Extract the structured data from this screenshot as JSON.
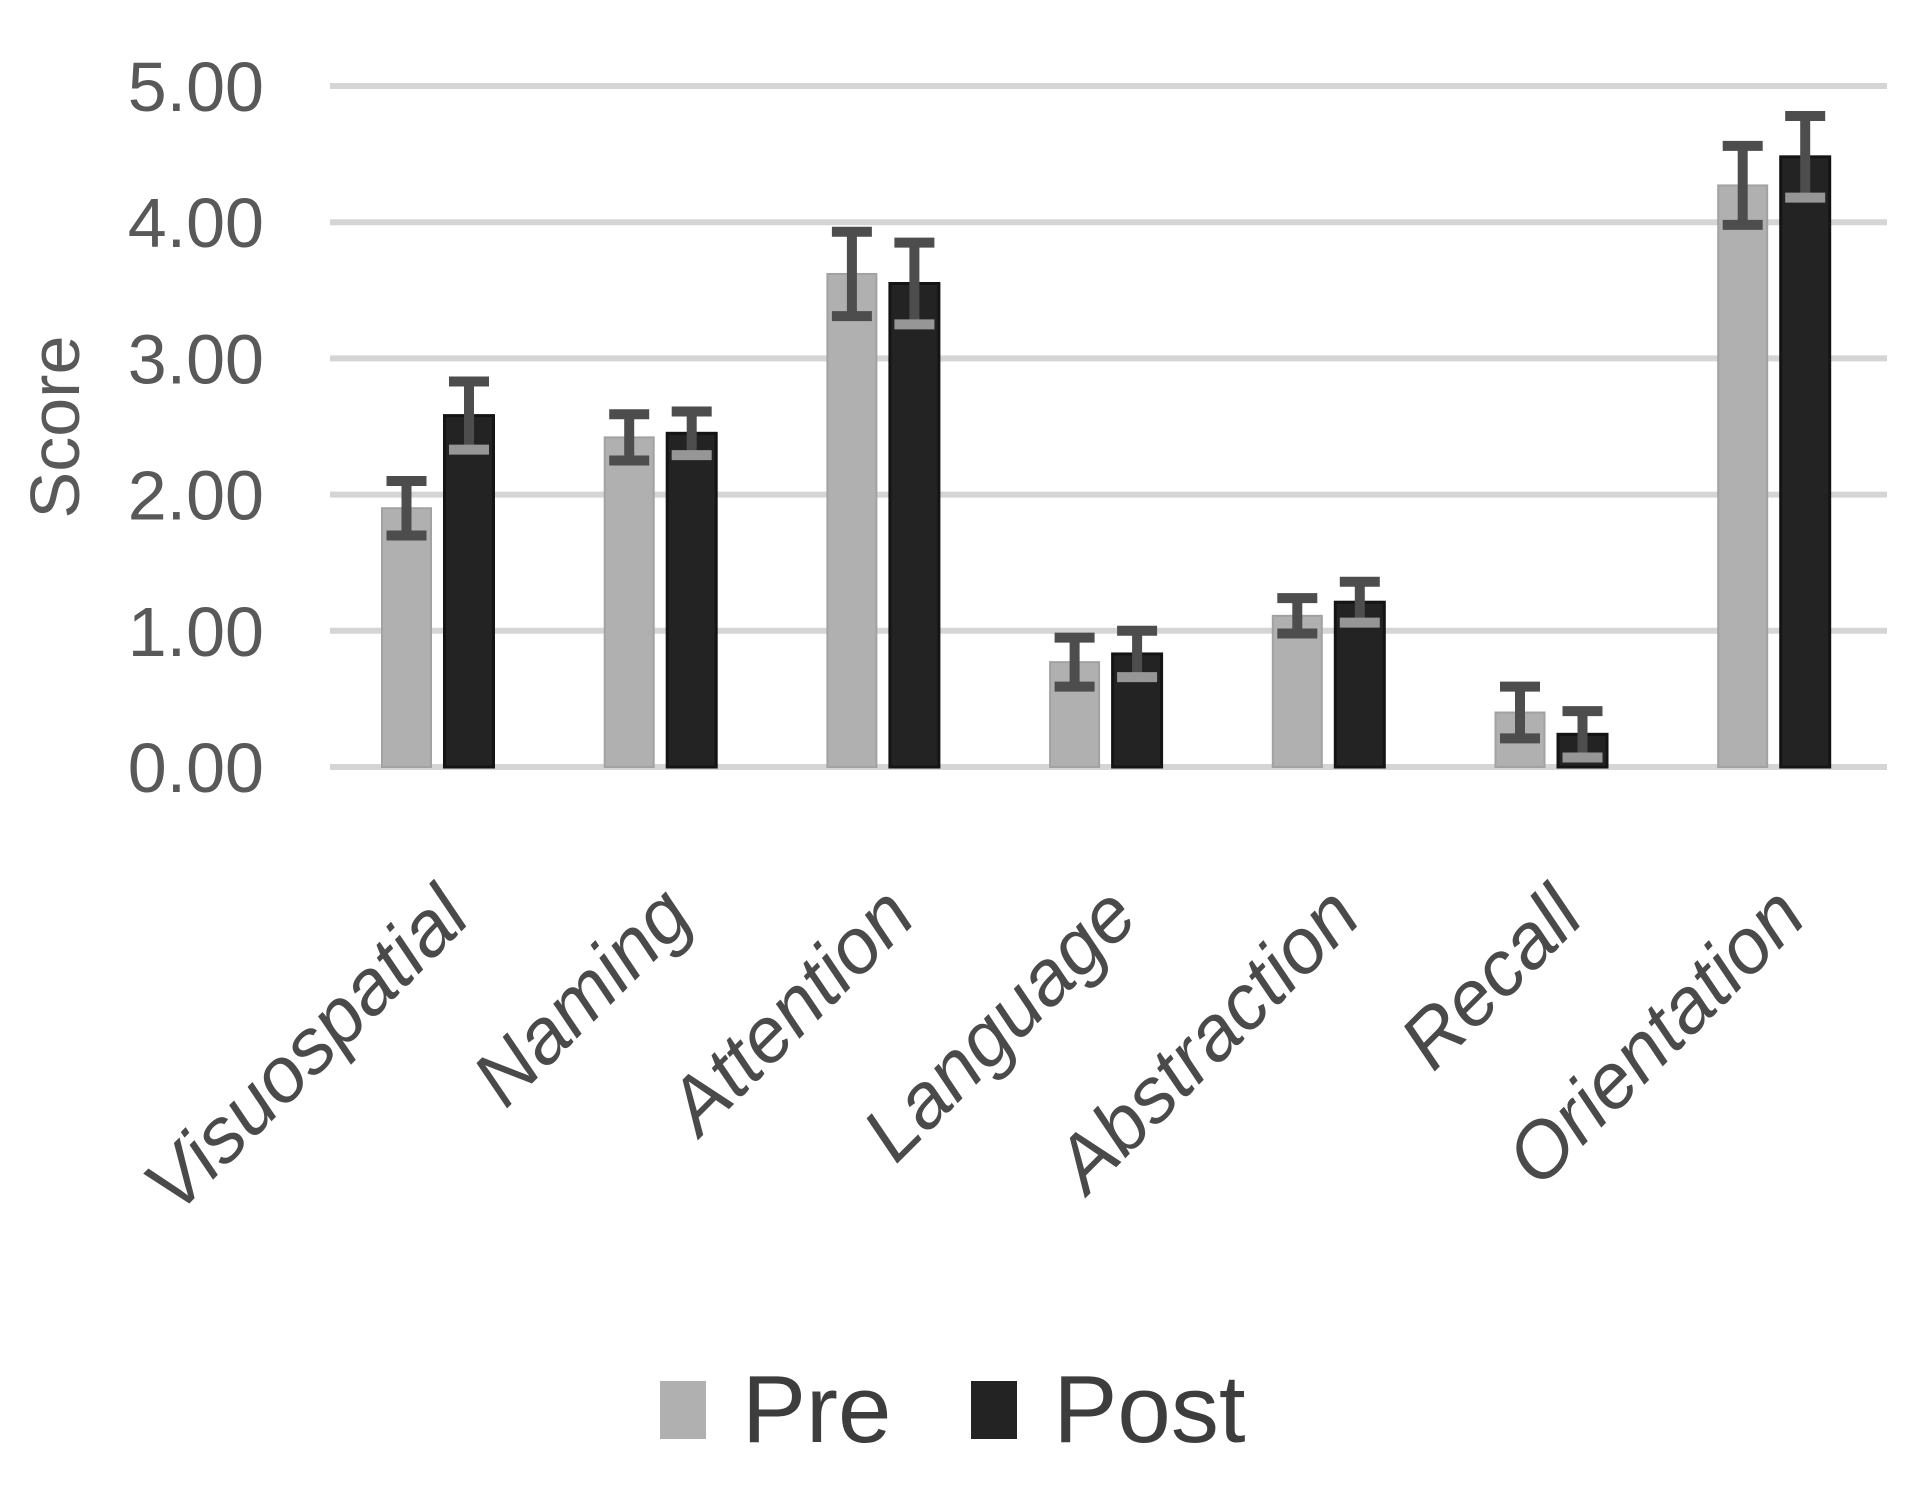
{
  "chart_data": {
    "type": "bar",
    "title": "",
    "xlabel": "",
    "ylabel": "Score",
    "categories": [
      "Visuospatial",
      "Naming",
      "Attention",
      "Language",
      "Abstraction",
      "Recall",
      "Orientation"
    ],
    "series": [
      {
        "name": "Pre",
        "color": "#b0b0b0",
        "border_color": "#a2a2a2",
        "values": [
          1.9,
          2.42,
          3.62,
          0.77,
          1.11,
          0.4,
          4.27
        ],
        "errors": [
          0.2,
          0.17,
          0.31,
          0.18,
          0.13,
          0.19,
          0.29
        ]
      },
      {
        "name": "Post",
        "color": "#232323",
        "border_color": "#141414",
        "values": [
          2.58,
          2.45,
          3.55,
          0.83,
          1.21,
          0.24,
          4.48
        ],
        "errors": [
          0.25,
          0.16,
          0.3,
          0.17,
          0.15,
          0.17,
          0.3
        ]
      }
    ],
    "ylim": [
      0,
      5
    ],
    "y_tick_values": [
      0,
      1,
      2,
      3,
      4,
      5
    ],
    "y_tick_labels": [
      "0.00",
      "1.00",
      "2.00",
      "3.00",
      "4.00",
      "5.00"
    ],
    "grid": true,
    "error_bars": true,
    "legend_position": "bottom-center",
    "category_label_rotation_deg": -45,
    "colors": {
      "background": "#ffffff",
      "gridline": "#d5d5d5",
      "error_bar": "#4d4d4d",
      "error_bottom_cap_on_post": "#969696",
      "axis_text": "#595959",
      "category_text": "#4a4a4a",
      "legend_text": "#3d3d3d"
    }
  }
}
